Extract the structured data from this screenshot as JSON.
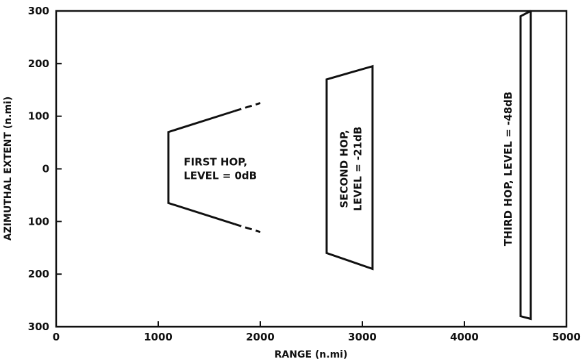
{
  "chart_data": {
    "type": "line",
    "xlabel": "RANGE (n.mi)",
    "ylabel": "AZIMUTHAL EXTENT (n.mi)",
    "xlim": [
      0,
      5000
    ],
    "ylim": [
      -300,
      300
    ],
    "x_ticks": [
      {
        "value": 0,
        "label": "0"
      },
      {
        "value": 1000,
        "label": "1000"
      },
      {
        "value": 2000,
        "label": "2000"
      },
      {
        "value": 3000,
        "label": "3000"
      },
      {
        "value": 4000,
        "label": "4000"
      },
      {
        "value": 5000,
        "label": "5000"
      }
    ],
    "y_ticks": [
      {
        "value": 300,
        "label": "300"
      },
      {
        "value": 200,
        "label": "200"
      },
      {
        "value": 100,
        "label": "100"
      },
      {
        "value": 0,
        "label": "0"
      },
      {
        "value": -100,
        "label": "100"
      },
      {
        "value": -200,
        "label": "200"
      },
      {
        "value": -300,
        "label": "300"
      }
    ],
    "grid": false,
    "regions": [
      {
        "solid": [
          [
            1750,
            110
          ],
          [
            1100,
            70
          ],
          [
            1100,
            -65
          ],
          [
            1750,
            -105
          ]
        ],
        "dashed": [
          [
            [
              1750,
              110
            ],
            [
              2000,
              125
            ]
          ],
          [
            [
              1750,
              -105
            ],
            [
              2000,
              -120
            ]
          ]
        ]
      },
      {
        "solid": [
          [
            3100,
            185
          ],
          [
            3100,
            195
          ],
          [
            2650,
            170
          ],
          [
            2650,
            -160
          ],
          [
            3100,
            -190
          ],
          [
            3100,
            185
          ]
        ]
      },
      {
        "solid": [
          [
            4650,
            300
          ],
          [
            4550,
            290
          ],
          [
            4550,
            -280
          ],
          [
            4650,
            -285
          ],
          [
            4650,
            300
          ]
        ]
      }
    ],
    "annotations": [
      {
        "lines": [
          "FIRST HOP,",
          "LEVEL = 0dB"
        ],
        "x": 1250,
        "y": 0,
        "rotation": 0
      },
      {
        "lines": [
          "SECOND HOP,",
          "LEVEL = -21dB"
        ],
        "x": 2890,
        "y": 0,
        "rotation": -90
      },
      {
        "lines": [
          "THIRD HOP, LEVEL = -48dB"
        ],
        "x": 4430,
        "y": 0,
        "rotation": -90
      }
    ]
  }
}
